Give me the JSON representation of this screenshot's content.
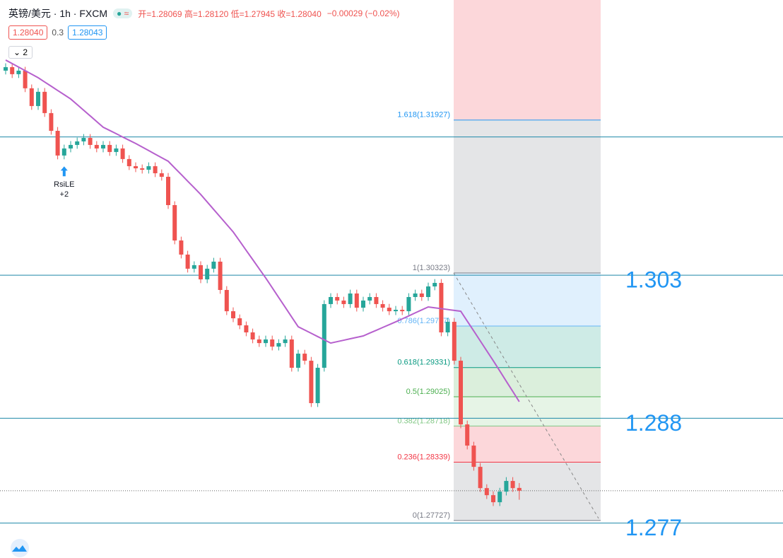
{
  "header": {
    "title": "英镑/美元 · 1h · FXCM",
    "ohlc": "开=1.28069 高=1.28120 低=1.27945 收=1.28040",
    "change": "−0.00029 (−0.02%)",
    "bid": "1.28040",
    "spread": "0.3",
    "ask": "1.28043",
    "collapse": "2"
  },
  "chart_data": {
    "type": "candlestick",
    "open": [
      1.32445,
      1.32482,
      1.32408,
      1.32445,
      1.3226,
      1.32074,
      1.32223,
      1.32,
      1.31814,
      1.31555,
      1.31629,
      1.31666,
      1.31703,
      1.3174,
      1.31666,
      1.31629,
      1.31666,
      1.31592,
      1.31629,
      1.31518,
      1.31443,
      1.31421,
      1.31406,
      1.31443,
      1.31369,
      1.31332,
      1.31035,
      1.30664,
      1.30516,
      1.30368,
      1.30405,
      1.30256,
      1.30368,
      1.30442,
      1.30145,
      1.29922,
      1.29848,
      1.29774,
      1.297,
      1.29626,
      1.29588,
      1.29626,
      1.29551,
      1.29588,
      1.29626,
      1.29329,
      1.29477,
      1.29403,
      1.28958,
      1.29329,
      1.29997,
      1.30071,
      1.30034,
      1.29997,
      1.30108,
      1.29959,
      1.30034,
      1.30071,
      1.29997,
      1.29959,
      1.29922,
      1.29937,
      1.29922,
      1.30071,
      1.30108,
      1.30071,
      1.30182,
      1.30219,
      1.297,
      1.29811,
      1.29403,
      1.28735,
      1.28513,
      1.2829,
      1.28067,
      1.27993,
      1.27919,
      1.2803,
      1.28142,
      1.28069
    ],
    "high": [
      1.32522,
      1.32522,
      1.32485,
      1.32485,
      1.323,
      1.32263,
      1.32263,
      1.3204,
      1.31854,
      1.31669,
      1.31706,
      1.31743,
      1.3178,
      1.3178,
      1.31706,
      1.31706,
      1.31706,
      1.31669,
      1.31669,
      1.31558,
      1.31483,
      1.31461,
      1.31483,
      1.31483,
      1.31409,
      1.31372,
      1.31075,
      1.30704,
      1.30556,
      1.30445,
      1.30445,
      1.30408,
      1.30482,
      1.30482,
      1.30185,
      1.29962,
      1.29888,
      1.29814,
      1.2974,
      1.29666,
      1.29666,
      1.29666,
      1.29628,
      1.29666,
      1.29666,
      1.29517,
      1.29517,
      1.29443,
      1.29369,
      1.30037,
      1.30111,
      1.30111,
      1.30074,
      1.30148,
      1.30148,
      1.30074,
      1.30111,
      1.30111,
      1.30037,
      1.29999,
      1.29977,
      1.29977,
      1.30111,
      1.30148,
      1.30148,
      1.30222,
      1.30259,
      1.30259,
      1.29851,
      1.29851,
      1.29443,
      1.28775,
      1.28553,
      1.2833,
      1.28107,
      1.28033,
      1.2807,
      1.28182,
      1.28182,
      1.2812
    ],
    "low": [
      1.32405,
      1.32368,
      1.32368,
      1.3222,
      1.32034,
      1.32034,
      1.3196,
      1.31774,
      1.31515,
      1.31515,
      1.31589,
      1.31626,
      1.31663,
      1.31626,
      1.31589,
      1.31589,
      1.31552,
      1.31552,
      1.31478,
      1.31403,
      1.31381,
      1.31366,
      1.31366,
      1.31329,
      1.31292,
      1.30995,
      1.30624,
      1.30476,
      1.30328,
      1.30328,
      1.30216,
      1.30216,
      1.30328,
      1.30105,
      1.29882,
      1.29808,
      1.29734,
      1.2966,
      1.29586,
      1.29548,
      1.29548,
      1.29511,
      1.29511,
      1.29548,
      1.29289,
      1.29289,
      1.29363,
      1.28918,
      1.28918,
      1.29289,
      1.29957,
      1.29994,
      1.29957,
      1.29957,
      1.29919,
      1.29919,
      1.29994,
      1.29957,
      1.29919,
      1.29882,
      1.29882,
      1.29882,
      1.29882,
      1.30031,
      1.30031,
      1.30031,
      1.30142,
      1.2966,
      1.2966,
      1.29363,
      1.28695,
      1.28473,
      1.2825,
      1.28027,
      1.27953,
      1.27879,
      1.27879,
      1.2799,
      1.28027,
      1.27945
    ],
    "close": [
      1.32482,
      1.32408,
      1.32445,
      1.3226,
      1.32074,
      1.32223,
      1.32,
      1.31814,
      1.31555,
      1.31629,
      1.31666,
      1.31703,
      1.3174,
      1.31666,
      1.31629,
      1.31666,
      1.31592,
      1.31629,
      1.31518,
      1.31443,
      1.31421,
      1.31406,
      1.31443,
      1.31369,
      1.31332,
      1.31035,
      1.30664,
      1.30516,
      1.30368,
      1.30405,
      1.30256,
      1.30368,
      1.30442,
      1.30145,
      1.29922,
      1.29848,
      1.29774,
      1.297,
      1.29626,
      1.29588,
      1.29626,
      1.29551,
      1.29588,
      1.29626,
      1.29329,
      1.29477,
      1.29403,
      1.28958,
      1.29329,
      1.29997,
      1.30071,
      1.30034,
      1.29997,
      1.30108,
      1.29959,
      1.30034,
      1.30071,
      1.29997,
      1.29959,
      1.29922,
      1.29937,
      1.29922,
      1.30071,
      1.30108,
      1.30071,
      1.30182,
      1.30219,
      1.297,
      1.29811,
      1.29403,
      1.28735,
      1.28513,
      1.2829,
      1.28067,
      1.27993,
      1.27919,
      1.2803,
      1.28142,
      1.28067,
      1.2804
    ],
    "up_color": "#26a69a",
    "down_color": "#ef5350",
    "ma": {
      "color": "#b660cd",
      "values": [
        1.32556,
        1.32519,
        1.32482,
        1.32445,
        1.32408,
        1.32371,
        1.32326,
        1.32282,
        1.32237,
        1.32193,
        1.32148,
        1.32089,
        1.3203,
        1.31971,
        1.31911,
        1.31852,
        1.31818,
        1.31784,
        1.31749,
        1.31715,
        1.31681,
        1.31644,
        1.31607,
        1.31569,
        1.31532,
        1.31495,
        1.31425,
        1.31356,
        1.31286,
        1.31217,
        1.31147,
        1.31068,
        1.30989,
        1.30911,
        1.30832,
        1.30753,
        1.30657,
        1.3056,
        1.30464,
        1.30367,
        1.30271,
        1.30169,
        1.30066,
        1.29964,
        1.29861,
        1.29759,
        1.29725,
        1.29691,
        1.29656,
        1.29622,
        1.29588,
        1.29603,
        1.29618,
        1.29633,
        1.29648,
        1.29663,
        1.29693,
        1.29722,
        1.29752,
        1.29781,
        1.29811,
        1.29842,
        1.29873,
        1.29905,
        1.29936,
        1.29967,
        1.29958,
        1.29949,
        1.2994,
        1.29931,
        1.29922,
        1.29818,
        1.29715,
        1.29611,
        1.29507,
        1.29403,
        1.29296,
        1.29188,
        1.29081,
        1.28973
      ]
    },
    "ylim": [
      1.27334,
      1.33186
    ],
    "levels": [
      {
        "value": 1.303,
        "label": "1.303"
      },
      {
        "value": 1.288,
        "label": "1.288"
      },
      {
        "value": 1.277,
        "label": "1.277"
      }
    ],
    "extra_levels": [
      1.3175
    ],
    "level_color": "#2196f3",
    "last_price": 1.2804,
    "fib": {
      "top_color": "#f23645",
      "levels": [
        {
          "value": 1.31927,
          "label": "1.618(1.31927)",
          "color": "#2196f3"
        },
        {
          "value": 1.30323,
          "label": "1(1.30323)",
          "color": "#787b86"
        },
        {
          "value": 1.29767,
          "label": "0.786(1.29767)",
          "color": "#64b5f6"
        },
        {
          "value": 1.29331,
          "label": "0.618(1.29331)",
          "color": "#089981"
        },
        {
          "value": 1.29025,
          "label": "0.5(1.29025)",
          "color": "#4caf50"
        },
        {
          "value": 1.28718,
          "label": "0.382(1.28718)",
          "color": "#81c784"
        },
        {
          "value": 1.28339,
          "label": "0.236(1.28339)",
          "color": "#f23645"
        },
        {
          "value": 1.27727,
          "label": "0(1.27727)",
          "color": "#787b86"
        }
      ]
    },
    "annotation": {
      "text": "RsiLE",
      "sub": "+2",
      "index": 9
    }
  }
}
